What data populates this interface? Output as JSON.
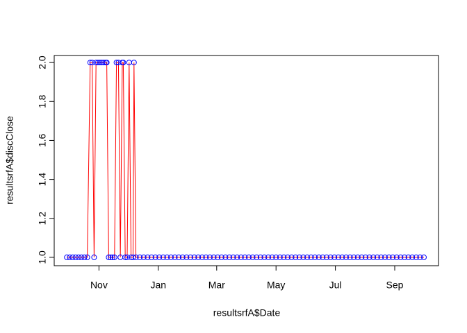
{
  "chart_data": {
    "type": "scatter-line",
    "xlabel": "resultsrfA$Date",
    "ylabel": "resultsrfA$discClose",
    "x": [
      -33,
      -30,
      -27,
      -24,
      -21,
      -18,
      -15,
      -12,
      -9,
      -7,
      -5,
      -3,
      -1,
      1,
      3,
      5,
      7,
      8,
      10,
      12,
      14,
      16,
      18,
      20,
      22,
      24,
      25,
      27,
      29,
      31,
      33,
      35,
      36,
      38,
      42,
      46,
      50,
      54,
      58,
      62,
      66,
      70,
      74,
      78,
      82,
      86,
      90,
      94,
      98,
      102,
      106,
      110,
      114,
      118,
      122,
      126,
      130,
      134,
      138,
      142,
      146,
      150,
      154,
      158,
      162,
      166,
      170,
      174,
      178,
      182,
      186,
      190,
      194,
      198,
      202,
      206,
      210,
      214,
      218,
      222,
      226,
      230,
      234,
      238,
      242,
      246,
      250,
      254,
      258,
      262,
      266,
      270,
      274,
      278,
      282,
      286,
      290,
      294,
      298,
      302,
      306,
      310,
      314,
      318,
      322,
      326,
      330,
      334
    ],
    "values": [
      1,
      1,
      1,
      1,
      1,
      1,
      1,
      1,
      2,
      2,
      1,
      2,
      2,
      2,
      2,
      2,
      2,
      2,
      1,
      1,
      1,
      1,
      2,
      2,
      1,
      2,
      2,
      1,
      1,
      2,
      1,
      1,
      2,
      1,
      1,
      1,
      1,
      1,
      1,
      1,
      1,
      1,
      1,
      1,
      1,
      1,
      1,
      1,
      1,
      1,
      1,
      1,
      1,
      1,
      1,
      1,
      1,
      1,
      1,
      1,
      1,
      1,
      1,
      1,
      1,
      1,
      1,
      1,
      1,
      1,
      1,
      1,
      1,
      1,
      1,
      1,
      1,
      1,
      1,
      1,
      1,
      1,
      1,
      1,
      1,
      1,
      1,
      1,
      1,
      1,
      1,
      1,
      1,
      1,
      1,
      1,
      1,
      1,
      1,
      1,
      1,
      1,
      1,
      1,
      1,
      1,
      1,
      1
    ],
    "point_color": "#0000ff",
    "line_color": "#ff0000",
    "xlim": [
      -46,
      349
    ],
    "xticks": [
      {
        "value": 0,
        "label": "Nov"
      },
      {
        "value": 61,
        "label": "Jan"
      },
      {
        "value": 121,
        "label": "Mar"
      },
      {
        "value": 182,
        "label": "May"
      },
      {
        "value": 243,
        "label": "Jul"
      },
      {
        "value": 304,
        "label": "Sep"
      }
    ],
    "ylim": [
      0.957,
      2.036
    ],
    "yticks": [
      {
        "value": 1,
        "label": "1.0"
      },
      {
        "value": 1.2,
        "label": "1.2"
      },
      {
        "value": 1.4,
        "label": "1.4"
      },
      {
        "value": 1.6,
        "label": "1.6"
      },
      {
        "value": 1.8,
        "label": "1.8"
      },
      {
        "value": 2,
        "label": "2.0"
      }
    ]
  }
}
